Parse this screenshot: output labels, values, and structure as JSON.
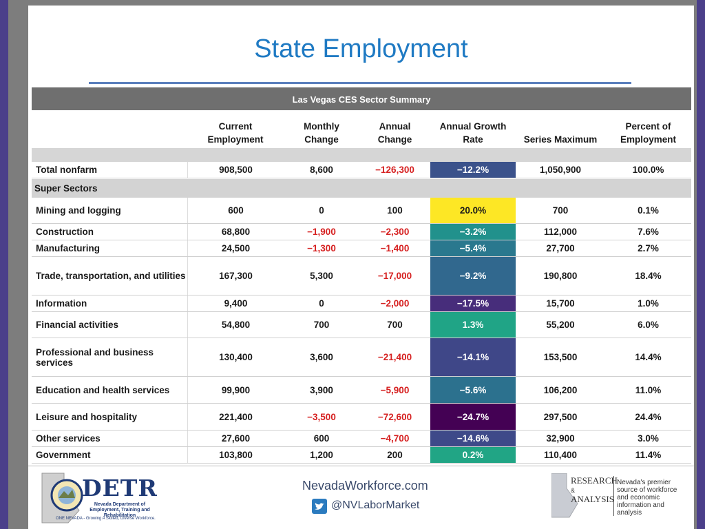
{
  "slide": {
    "title": "State Employment"
  },
  "table": {
    "caption": "Las Vegas CES Sector Summary",
    "columns": [
      {
        "line1": "",
        "line2": ""
      },
      {
        "line1": "Current",
        "line2": "Employment"
      },
      {
        "line1": "Monthly",
        "line2": "Change"
      },
      {
        "line1": "Annual",
        "line2": "Change"
      },
      {
        "line1": "Annual Growth",
        "line2": "Rate"
      },
      {
        "line1": "",
        "line2": "Series Maximum"
      },
      {
        "line1": "Percent of",
        "line2": "Employment"
      }
    ],
    "total": {
      "name": "Total nonfarm",
      "current": "908,500",
      "monthly": "8,600",
      "annual": "−126,300",
      "growth": "−12.2%",
      "max": "1,050,900",
      "pct": "100.0%"
    },
    "section_label": "Super Sectors",
    "rows": [
      {
        "name": "Mining and logging",
        "current": "600",
        "monthly": "0",
        "annual": "100",
        "growth": "20.0%",
        "max": "700",
        "pct": "0.1%"
      },
      {
        "name": "Construction",
        "current": "68,800",
        "monthly": "−1,900",
        "annual": "−2,300",
        "growth": "−3.2%",
        "max": "112,000",
        "pct": "7.6%"
      },
      {
        "name": "Manufacturing",
        "current": "24,500",
        "monthly": "−1,300",
        "annual": "−1,400",
        "growth": "−5.4%",
        "max": "27,700",
        "pct": "2.7%"
      },
      {
        "name": "Trade, transportation, and utilities",
        "current": "167,300",
        "monthly": "5,300",
        "annual": "−17,000",
        "growth": "−9.2%",
        "max": "190,800",
        "pct": "18.4%"
      },
      {
        "name": "Information",
        "current": "9,400",
        "monthly": "0",
        "annual": "−2,000",
        "growth": "−17.5%",
        "max": "15,700",
        "pct": "1.0%"
      },
      {
        "name": "Financial activities",
        "current": "54,800",
        "monthly": "700",
        "annual": "700",
        "growth": "1.3%",
        "max": "55,200",
        "pct": "6.0%"
      },
      {
        "name": "Professional and business services",
        "current": "130,400",
        "monthly": "3,600",
        "annual": "−21,400",
        "growth": "−14.1%",
        "max": "153,500",
        "pct": "14.4%"
      },
      {
        "name": "Education and health services",
        "current": "99,900",
        "monthly": "3,900",
        "annual": "−5,900",
        "growth": "−5.6%",
        "max": "106,200",
        "pct": "11.0%"
      },
      {
        "name": "Leisure and hospitality",
        "current": "221,400",
        "monthly": "−3,500",
        "annual": "−72,600",
        "growth": "−24.7%",
        "max": "297,500",
        "pct": "24.4%"
      },
      {
        "name": "Other services",
        "current": "27,600",
        "monthly": "600",
        "annual": "−4,700",
        "growth": "−14.6%",
        "max": "32,900",
        "pct": "3.0%"
      },
      {
        "name": "Government",
        "current": "103,800",
        "monthly": "1,200",
        "annual": "200",
        "growth": "0.2%",
        "max": "110,400",
        "pct": "11.4%"
      }
    ],
    "growth_colors": {
      "total": "#3b528b",
      "rows": [
        "#fde725",
        "#21918c",
        "#2a788e",
        "#31688e",
        "#472d7b",
        "#20a486",
        "#3f4788",
        "#2c718e",
        "#440154",
        "#3e4989",
        "#21a585"
      ]
    },
    "negative_color": "#d62020"
  },
  "footer": {
    "detr_logo": "DETR",
    "detr_sub": "Nevada Department of Employment, Training and Rehabilitation",
    "detr_tagline": "ONE NEVADA - Growing A Skilled, Diverse Workforce.",
    "website": "NevadaWorkforce.com",
    "twitter_icon": "twitter-bird-icon",
    "twitter": "@NVLaborMarket",
    "ra_line1": "RESEARCH",
    "ra_amp": "&",
    "ra_line2": "ANALYSIS",
    "ra_desc": "Nevada's premier source of workforce and economic information and analysis"
  }
}
